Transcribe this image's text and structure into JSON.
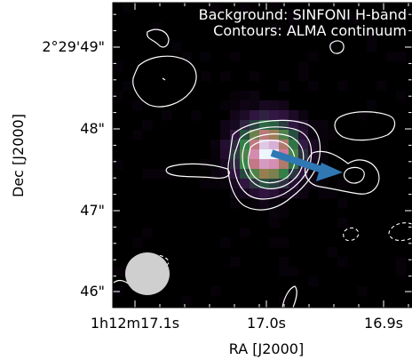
{
  "chart_data": {
    "type": "heatmap",
    "title": "",
    "annotations": [
      "Background: SINFONI H-band",
      "Contours: ALMA continuum"
    ],
    "xlabel": "RA [J2000]",
    "ylabel": "Dec [J2000]",
    "x_ticks": [
      "1h12m17.1s",
      "17.0s",
      "16.9s"
    ],
    "y_ticks": [
      "2°29'49\"",
      "48\"",
      "47\"",
      "46\""
    ],
    "background": {
      "name": "SINFONI H-band",
      "source_peak": {
        "ra": "1h12m17.016s",
        "dec": "2°29'47.75\""
      },
      "colormap": "cubehelix"
    },
    "contours": {
      "name": "ALMA continuum",
      "color": "#ffffff",
      "solid_levels": 4,
      "dashed": "negative"
    },
    "arrow": {
      "color": "#2f78b4",
      "from": {
        "ra": "1h12m17.013s",
        "dec": "2°29'47.7\""
      },
      "to": {
        "ra": "1h12m16.955s",
        "dec": "2°29'47.4\""
      }
    },
    "beam": {
      "color": "#cfcfcf",
      "position": "bottom-left"
    }
  }
}
